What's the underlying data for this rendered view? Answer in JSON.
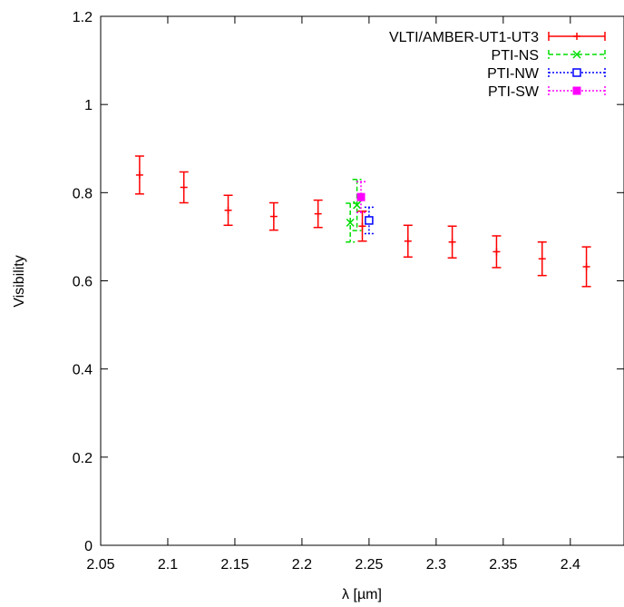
{
  "chart_data": {
    "type": "scatter",
    "title": "",
    "xlabel": "λ [µm]",
    "ylabel": "Visibility",
    "xlim": [
      2.05,
      2.44
    ],
    "ylim": [
      0,
      1.2
    ],
    "xticks": [
      "2.05",
      "2.1",
      "2.15",
      "2.2",
      "2.25",
      "2.3",
      "2.35",
      "2.4"
    ],
    "yticks": [
      "0",
      "0.2",
      "0.4",
      "0.6",
      "0.8",
      "1",
      "1.2"
    ],
    "grid": false,
    "legend_position": "top-right",
    "series": [
      {
        "name": "VLTI/AMBER-UT1-UT3",
        "color": "#ff0000",
        "marker": "plus",
        "line": "solid",
        "points": [
          {
            "x": 2.079,
            "y": 0.84,
            "err": 0.043
          },
          {
            "x": 2.112,
            "y": 0.812,
            "err": 0.035
          },
          {
            "x": 2.145,
            "y": 0.76,
            "err": 0.034
          },
          {
            "x": 2.179,
            "y": 0.746,
            "err": 0.031
          },
          {
            "x": 2.212,
            "y": 0.752,
            "err": 0.031
          },
          {
            "x": 2.245,
            "y": 0.724,
            "err": 0.034
          },
          {
            "x": 2.279,
            "y": 0.69,
            "err": 0.036
          },
          {
            "x": 2.312,
            "y": 0.688,
            "err": 0.036
          },
          {
            "x": 2.345,
            "y": 0.666,
            "err": 0.036
          },
          {
            "x": 2.379,
            "y": 0.65,
            "err": 0.038
          },
          {
            "x": 2.412,
            "y": 0.632,
            "err": 0.045
          }
        ]
      },
      {
        "name": "PTI-NS",
        "color": "#00dd00",
        "marker": "x",
        "line": "dashed",
        "points": [
          {
            "x": 2.236,
            "y": 0.732,
            "err": 0.044
          },
          {
            "x": 2.241,
            "y": 0.772,
            "err": 0.058
          }
        ]
      },
      {
        "name": "PTI-NW",
        "color": "#0000ff",
        "marker": "square-open",
        "line": "dotted",
        "points": [
          {
            "x": 2.25,
            "y": 0.737,
            "err": 0.03
          }
        ]
      },
      {
        "name": "PTI-SW",
        "color": "#ff00ff",
        "marker": "square-filled",
        "line": "dotted",
        "points": [
          {
            "x": 2.244,
            "y": 0.79,
            "err": 0.035
          }
        ]
      }
    ]
  }
}
